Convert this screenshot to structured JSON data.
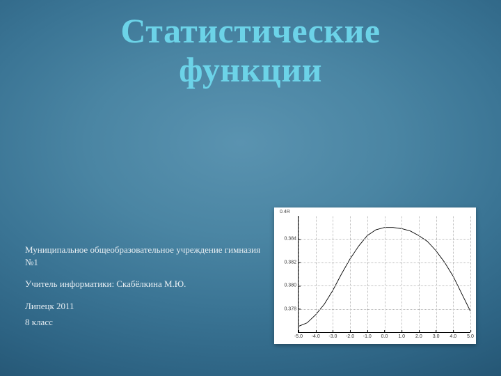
{
  "title_line1": "Статистические",
  "title_line2": "функции",
  "title_color": "#6cd3e8",
  "title_fontsize": 50,
  "info": {
    "line1": "Муниципальное общеобразовательное учреждение гимназия №1",
    "line2": "Учитель информатики: Скабёлкина М.Ю.",
    "line3": "Липецк 2011",
    "line4": "8 класс",
    "fontsize": 13,
    "color": "#e6edf2"
  },
  "background_gradient": {
    "inner": "#5a93b0",
    "outer": "#1d4862"
  },
  "chart": {
    "type": "line",
    "title": "0.4R",
    "background_color": "#ffffff",
    "grid_color": "#bbbbbb",
    "axis_color": "#000000",
    "line_color": "#000000",
    "line_width": 1.4,
    "xlim": [
      -5.0,
      5.0
    ],
    "ylim": [
      0.376,
      0.386
    ],
    "xticks": [
      -5.0,
      -4.0,
      -3.0,
      -2.0,
      -1.0,
      0.0,
      1.0,
      2.0,
      3.0,
      4.0,
      5.0
    ],
    "yticks": [
      0.378,
      0.38,
      0.382,
      0.384
    ],
    "tick_fontsize": 7,
    "series": {
      "x": [
        -5.0,
        -4.5,
        -4.0,
        -3.5,
        -3.0,
        -2.5,
        -2.0,
        -1.5,
        -1.0,
        -0.5,
        0.0,
        0.5,
        1.0,
        1.5,
        2.0,
        2.5,
        3.0,
        3.5,
        4.0,
        4.5,
        5.0
      ],
      "y": [
        0.3765,
        0.3768,
        0.3775,
        0.3784,
        0.3796,
        0.381,
        0.3823,
        0.3834,
        0.3843,
        0.3848,
        0.385,
        0.385,
        0.3849,
        0.3847,
        0.3843,
        0.3838,
        0.383,
        0.382,
        0.3808,
        0.3793,
        0.3778
      ]
    }
  }
}
